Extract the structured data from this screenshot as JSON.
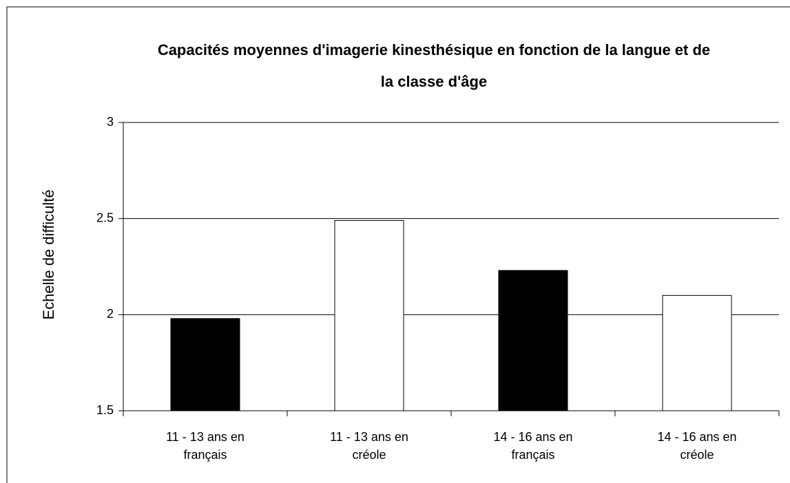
{
  "chart_data": {
    "type": "bar",
    "title": "Capacités moyennes d'imagerie kinesthésique en fonction de la langue et de la classe d'âge",
    "y_label": "Echelle de difficulté",
    "categories": [
      "11 - 13 ans en français",
      "11 - 13 ans en créole",
      "14 - 16 ans en français",
      "14 - 16 ans en créole"
    ],
    "values": [
      1.98,
      2.49,
      2.23,
      2.1
    ],
    "colors": [
      "#000000",
      "#ffffff",
      "#000000",
      "#ffffff"
    ],
    "ylim": [
      1.5,
      3
    ],
    "yticks": [
      1.5,
      2,
      2.5,
      3
    ],
    "grid": true
  }
}
